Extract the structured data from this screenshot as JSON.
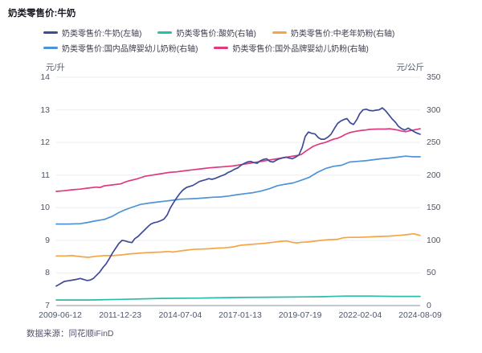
{
  "title": "奶类零售价:牛奶",
  "footer": {
    "text": "数据来源：同花顺iFinD"
  },
  "colors": {
    "milk_navy": "#3e4b98",
    "yogurt_teal": "#2bbcab",
    "senior_powder_orange": "#f6a544",
    "domestic_infant_blue": "#4d93d8",
    "foreign_infant_pink": "#e0397e",
    "grid": "#ececf3",
    "axis_line": "#b4b6c2",
    "tick_text": "#4f5668"
  },
  "chart_data": {
    "type": "line",
    "title": "奶类零售价:牛奶",
    "grid": true,
    "legend_position": "top",
    "x_axis": {
      "tick_labels": [
        "2009-06-12",
        "2011-12-23",
        "2014-07-04",
        "2017-01-13",
        "2019-07-19",
        "2022-02-04",
        "2024-08-09"
      ]
    },
    "y_left": {
      "unit": "元/升",
      "min": 7,
      "max": 14,
      "ticks": [
        7,
        8,
        9,
        10,
        11,
        12,
        13,
        14
      ]
    },
    "y_right": {
      "unit": "元/公斤",
      "min": 0,
      "max": 350,
      "ticks": [
        0,
        50,
        100,
        150,
        200,
        250,
        300,
        350
      ]
    },
    "series": [
      {
        "name": "奶类零售价:牛奶(左轴)",
        "axis": "left",
        "color": "#3e4b98",
        "points": [
          [
            0,
            7.6
          ],
          [
            0.004,
            7.62
          ],
          [
            0.013,
            7.68
          ],
          [
            0.022,
            7.74
          ],
          [
            0.033,
            7.76
          ],
          [
            0.044,
            7.78
          ],
          [
            0.055,
            7.8
          ],
          [
            0.066,
            7.83
          ],
          [
            0.075,
            7.8
          ],
          [
            0.084,
            7.77
          ],
          [
            0.093,
            7.78
          ],
          [
            0.102,
            7.83
          ],
          [
            0.11,
            7.92
          ],
          [
            0.119,
            8.02
          ],
          [
            0.128,
            8.16
          ],
          [
            0.137,
            8.28
          ],
          [
            0.146,
            8.44
          ],
          [
            0.155,
            8.62
          ],
          [
            0.163,
            8.75
          ],
          [
            0.172,
            8.9
          ],
          [
            0.181,
            9.0
          ],
          [
            0.19,
            8.98
          ],
          [
            0.199,
            8.95
          ],
          [
            0.208,
            8.93
          ],
          [
            0.216,
            9.05
          ],
          [
            0.225,
            9.12
          ],
          [
            0.234,
            9.22
          ],
          [
            0.243,
            9.32
          ],
          [
            0.252,
            9.42
          ],
          [
            0.26,
            9.5
          ],
          [
            0.269,
            9.54
          ],
          [
            0.278,
            9.56
          ],
          [
            0.287,
            9.6
          ],
          [
            0.296,
            9.65
          ],
          [
            0.305,
            9.78
          ],
          [
            0.313,
            9.98
          ],
          [
            0.322,
            10.15
          ],
          [
            0.331,
            10.3
          ],
          [
            0.34,
            10.44
          ],
          [
            0.349,
            10.55
          ],
          [
            0.358,
            10.62
          ],
          [
            0.366,
            10.65
          ],
          [
            0.375,
            10.68
          ],
          [
            0.384,
            10.74
          ],
          [
            0.393,
            10.8
          ],
          [
            0.402,
            10.83
          ],
          [
            0.411,
            10.86
          ],
          [
            0.419,
            10.89
          ],
          [
            0.428,
            10.87
          ],
          [
            0.437,
            10.9
          ],
          [
            0.446,
            10.94
          ],
          [
            0.455,
            10.98
          ],
          [
            0.464,
            11.02
          ],
          [
            0.472,
            11.08
          ],
          [
            0.481,
            11.12
          ],
          [
            0.49,
            11.18
          ],
          [
            0.499,
            11.22
          ],
          [
            0.508,
            11.3
          ],
          [
            0.517,
            11.36
          ],
          [
            0.525,
            11.4
          ],
          [
            0.534,
            11.42
          ],
          [
            0.543,
            11.38
          ],
          [
            0.552,
            11.36
          ],
          [
            0.561,
            11.44
          ],
          [
            0.57,
            11.48
          ],
          [
            0.578,
            11.5
          ],
          [
            0.587,
            11.42
          ],
          [
            0.596,
            11.4
          ],
          [
            0.605,
            11.46
          ],
          [
            0.614,
            11.5
          ],
          [
            0.623,
            11.53
          ],
          [
            0.631,
            11.55
          ],
          [
            0.64,
            11.52
          ],
          [
            0.649,
            11.5
          ],
          [
            0.658,
            11.55
          ],
          [
            0.667,
            11.62
          ],
          [
            0.676,
            11.85
          ],
          [
            0.684,
            12.18
          ],
          [
            0.693,
            12.32
          ],
          [
            0.702,
            12.28
          ],
          [
            0.711,
            12.26
          ],
          [
            0.72,
            12.15
          ],
          [
            0.728,
            12.1
          ],
          [
            0.737,
            12.1
          ],
          [
            0.746,
            12.16
          ],
          [
            0.755,
            12.25
          ],
          [
            0.764,
            12.42
          ],
          [
            0.773,
            12.58
          ],
          [
            0.781,
            12.65
          ],
          [
            0.79,
            12.7
          ],
          [
            0.799,
            12.73
          ],
          [
            0.808,
            12.6
          ],
          [
            0.817,
            12.55
          ],
          [
            0.826,
            12.7
          ],
          [
            0.834,
            12.88
          ],
          [
            0.843,
            13.0
          ],
          [
            0.852,
            13.02
          ],
          [
            0.861,
            12.98
          ],
          [
            0.87,
            12.97
          ],
          [
            0.879,
            12.99
          ],
          [
            0.887,
            13.0
          ],
          [
            0.896,
            13.06
          ],
          [
            0.905,
            12.97
          ],
          [
            0.914,
            12.85
          ],
          [
            0.923,
            12.72
          ],
          [
            0.932,
            12.62
          ],
          [
            0.94,
            12.5
          ],
          [
            0.949,
            12.42
          ],
          [
            0.958,
            12.38
          ],
          [
            0.967,
            12.44
          ],
          [
            0.976,
            12.38
          ],
          [
            0.985,
            12.32
          ],
          [
            0.993,
            12.28
          ],
          [
            1,
            12.25
          ]
        ]
      },
      {
        "name": "奶类零售价:酸奶(右轴)",
        "axis": "right",
        "color": "#2bbcab",
        "points": [
          [
            0,
            8.5
          ],
          [
            0.088,
            8.5
          ],
          [
            0.177,
            9.5
          ],
          [
            0.287,
            11
          ],
          [
            0.397,
            11.5
          ],
          [
            0.508,
            12.5
          ],
          [
            0.618,
            13
          ],
          [
            0.728,
            13.5
          ],
          [
            0.795,
            14.5
          ],
          [
            0.861,
            14.5
          ],
          [
            0.927,
            14
          ],
          [
            1,
            14
          ]
        ]
      },
      {
        "name": "奶类零售价:中老年奶粉(右轴)",
        "axis": "right",
        "color": "#f6a544",
        "points": [
          [
            0,
            76
          ],
          [
            0.022,
            76
          ],
          [
            0.044,
            76.5
          ],
          [
            0.066,
            75
          ],
          [
            0.088,
            74
          ],
          [
            0.11,
            75.5
          ],
          [
            0.132,
            76.5
          ],
          [
            0.155,
            76.5
          ],
          [
            0.177,
            77.5
          ],
          [
            0.199,
            79
          ],
          [
            0.221,
            80
          ],
          [
            0.243,
            81
          ],
          [
            0.265,
            81.5
          ],
          [
            0.287,
            82
          ],
          [
            0.309,
            83
          ],
          [
            0.32,
            82
          ],
          [
            0.331,
            83
          ],
          [
            0.353,
            84.5
          ],
          [
            0.375,
            86
          ],
          [
            0.397,
            86.5
          ],
          [
            0.419,
            87
          ],
          [
            0.441,
            88
          ],
          [
            0.464,
            88.5
          ],
          [
            0.486,
            90
          ],
          [
            0.508,
            92.5
          ],
          [
            0.53,
            93.5
          ],
          [
            0.552,
            94.5
          ],
          [
            0.574,
            95.5
          ],
          [
            0.596,
            97
          ],
          [
            0.618,
            98.5
          ],
          [
            0.634,
            99
          ],
          [
            0.651,
            96.5
          ],
          [
            0.662,
            96
          ],
          [
            0.673,
            97
          ],
          [
            0.691,
            97.5
          ],
          [
            0.706,
            98.5
          ],
          [
            0.728,
            100
          ],
          [
            0.751,
            101
          ],
          [
            0.773,
            101.5
          ],
          [
            0.79,
            104
          ],
          [
            0.806,
            104.5
          ],
          [
            0.828,
            104.5
          ],
          [
            0.85,
            105
          ],
          [
            0.872,
            105.5
          ],
          [
            0.894,
            106
          ],
          [
            0.916,
            106.5
          ],
          [
            0.938,
            107.5
          ],
          [
            0.96,
            108.5
          ],
          [
            0.982,
            110
          ],
          [
            0.993,
            108.5
          ],
          [
            1,
            107.5
          ]
        ]
      },
      {
        "name": "奶类零售价:国内品牌婴幼儿奶粉(右轴)",
        "axis": "right",
        "color": "#4d93d8",
        "points": [
          [
            0,
            125
          ],
          [
            0.033,
            125
          ],
          [
            0.066,
            125.5
          ],
          [
            0.088,
            127.5
          ],
          [
            0.11,
            130
          ],
          [
            0.132,
            132
          ],
          [
            0.155,
            137
          ],
          [
            0.172,
            142.5
          ],
          [
            0.188,
            146.5
          ],
          [
            0.21,
            151
          ],
          [
            0.232,
            155
          ],
          [
            0.254,
            157
          ],
          [
            0.276,
            158.5
          ],
          [
            0.298,
            160
          ],
          [
            0.32,
            161.5
          ],
          [
            0.342,
            163
          ],
          [
            0.364,
            163.5
          ],
          [
            0.386,
            164
          ],
          [
            0.408,
            165
          ],
          [
            0.43,
            166
          ],
          [
            0.453,
            166.5
          ],
          [
            0.475,
            168
          ],
          [
            0.497,
            170
          ],
          [
            0.519,
            171.5
          ],
          [
            0.541,
            173
          ],
          [
            0.563,
            175.5
          ],
          [
            0.585,
            179
          ],
          [
            0.607,
            183.5
          ],
          [
            0.629,
            186
          ],
          [
            0.651,
            188
          ],
          [
            0.673,
            192
          ],
          [
            0.695,
            196.5
          ],
          [
            0.717,
            204
          ],
          [
            0.74,
            210
          ],
          [
            0.762,
            213.5
          ],
          [
            0.784,
            215
          ],
          [
            0.806,
            220
          ],
          [
            0.828,
            221
          ],
          [
            0.85,
            222
          ],
          [
            0.872,
            223.5
          ],
          [
            0.894,
            225
          ],
          [
            0.916,
            226
          ],
          [
            0.938,
            227.5
          ],
          [
            0.96,
            229
          ],
          [
            0.982,
            228
          ],
          [
            1,
            228
          ]
        ]
      },
      {
        "name": "奶类零售价:国外品牌婴幼儿奶粉(右轴)",
        "axis": "right",
        "color": "#e0397e",
        "points": [
          [
            0,
            175
          ],
          [
            0.022,
            176
          ],
          [
            0.044,
            177.5
          ],
          [
            0.066,
            178.5
          ],
          [
            0.088,
            180
          ],
          [
            0.11,
            181.5
          ],
          [
            0.121,
            181
          ],
          [
            0.132,
            183.5
          ],
          [
            0.155,
            185
          ],
          [
            0.177,
            186.5
          ],
          [
            0.188,
            189
          ],
          [
            0.199,
            191
          ],
          [
            0.21,
            192.5
          ],
          [
            0.221,
            194
          ],
          [
            0.232,
            196
          ],
          [
            0.243,
            198
          ],
          [
            0.265,
            200
          ],
          [
            0.287,
            202
          ],
          [
            0.309,
            204
          ],
          [
            0.331,
            205
          ],
          [
            0.353,
            206.5
          ],
          [
            0.375,
            208
          ],
          [
            0.397,
            209.5
          ],
          [
            0.419,
            211
          ],
          [
            0.441,
            212
          ],
          [
            0.464,
            213
          ],
          [
            0.486,
            214
          ],
          [
            0.508,
            216
          ],
          [
            0.53,
            218
          ],
          [
            0.552,
            220
          ],
          [
            0.574,
            222
          ],
          [
            0.596,
            224
          ],
          [
            0.618,
            226
          ],
          [
            0.64,
            228
          ],
          [
            0.662,
            230
          ],
          [
            0.673,
            231.5
          ],
          [
            0.684,
            236
          ],
          [
            0.695,
            240
          ],
          [
            0.706,
            244
          ],
          [
            0.717,
            246.5
          ],
          [
            0.728,
            248.5
          ],
          [
            0.74,
            250
          ],
          [
            0.751,
            252.5
          ],
          [
            0.762,
            255
          ],
          [
            0.773,
            256.5
          ],
          [
            0.784,
            259
          ],
          [
            0.795,
            262.5
          ],
          [
            0.806,
            265
          ],
          [
            0.817,
            266.5
          ],
          [
            0.828,
            267.5
          ],
          [
            0.839,
            268.5
          ],
          [
            0.85,
            269
          ],
          [
            0.861,
            270
          ],
          [
            0.883,
            270.5
          ],
          [
            0.905,
            270.5
          ],
          [
            0.916,
            271
          ],
          [
            0.927,
            270
          ],
          [
            0.938,
            269
          ],
          [
            0.949,
            267.5
          ],
          [
            0.96,
            266.5
          ],
          [
            0.971,
            268
          ],
          [
            0.982,
            269
          ],
          [
            1,
            271
          ]
        ]
      }
    ]
  }
}
